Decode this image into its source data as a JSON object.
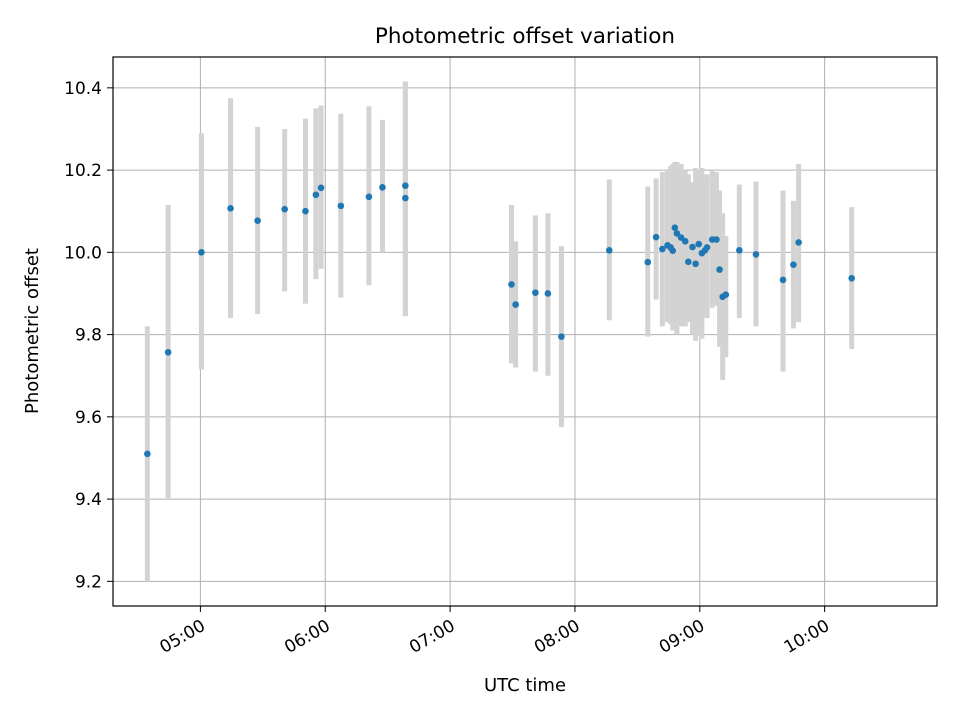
{
  "chart_data": {
    "type": "scatter",
    "title": "Photometric offset variation",
    "xlabel": "UTC time",
    "ylabel": "Photometric offset",
    "x_unit": "UTC time (HH:MM)",
    "xlim": [
      "04:18",
      "10:54"
    ],
    "ylim": [
      9.14,
      10.475
    ],
    "xticks": [
      "05:00",
      "06:00",
      "07:00",
      "08:00",
      "09:00",
      "10:00"
    ],
    "yticks": [
      "9.2",
      "9.4",
      "9.6",
      "9.8",
      "10.0",
      "10.2",
      "10.4"
    ],
    "grid": true,
    "marker_color": "#1f77b4",
    "errorbar_color": "#d3d3d3",
    "series": [
      {
        "points": [
          {
            "x": "04:34:30",
            "y": 9.51,
            "ylow": 9.2,
            "yhigh": 9.82
          },
          {
            "x": "04:44:30",
            "y": 9.757,
            "ylow": 9.4,
            "yhigh": 10.115
          },
          {
            "x": "05:00:30",
            "y": 10.0,
            "ylow": 9.715,
            "yhigh": 10.29
          },
          {
            "x": "05:14:30",
            "y": 10.107,
            "ylow": 9.84,
            "yhigh": 10.375
          },
          {
            "x": "05:27:30",
            "y": 10.077,
            "ylow": 9.85,
            "yhigh": 10.305
          },
          {
            "x": "05:40:30",
            "y": 10.105,
            "ylow": 9.905,
            "yhigh": 10.3
          },
          {
            "x": "05:50:30",
            "y": 10.1,
            "ylow": 9.875,
            "yhigh": 10.325
          },
          {
            "x": "05:55:30",
            "y": 10.14,
            "ylow": 9.935,
            "yhigh": 10.35
          },
          {
            "x": "05:58:00",
            "y": 10.157,
            "ylow": 9.96,
            "yhigh": 10.357
          },
          {
            "x": "06:07:30",
            "y": 10.113,
            "ylow": 9.89,
            "yhigh": 10.337
          },
          {
            "x": "06:21:00",
            "y": 10.135,
            "ylow": 9.92,
            "yhigh": 10.355
          },
          {
            "x": "06:27:30",
            "y": 10.158,
            "ylow": 10.0,
            "yhigh": 10.322
          },
          {
            "x": "06:38:30",
            "y": 10.162,
            "ylow": 9.845,
            "yhigh": 10.415
          },
          {
            "x": "06:38:30",
            "y": 10.132,
            "ylow": 9.845,
            "yhigh": 10.415
          },
          {
            "x": "07:29:30",
            "y": 9.922,
            "ylow": 9.73,
            "yhigh": 10.115
          },
          {
            "x": "07:31:30",
            "y": 9.873,
            "ylow": 9.72,
            "yhigh": 10.027
          },
          {
            "x": "07:41:00",
            "y": 9.902,
            "ylow": 9.71,
            "yhigh": 10.09
          },
          {
            "x": "07:47:00",
            "y": 9.9,
            "ylow": 9.7,
            "yhigh": 10.095
          },
          {
            "x": "07:53:30",
            "y": 9.795,
            "ylow": 9.575,
            "yhigh": 10.015
          },
          {
            "x": "08:16:30",
            "y": 10.005,
            "ylow": 9.835,
            "yhigh": 10.177
          },
          {
            "x": "08:35:00",
            "y": 9.976,
            "ylow": 9.795,
            "yhigh": 10.16
          },
          {
            "x": "08:39:00",
            "y": 10.037,
            "ylow": 9.885,
            "yhigh": 10.18
          },
          {
            "x": "08:42:00",
            "y": 10.008,
            "ylow": 9.82,
            "yhigh": 10.195
          },
          {
            "x": "08:44:30",
            "y": 10.017,
            "ylow": 9.83,
            "yhigh": 10.2
          },
          {
            "x": "08:46:00",
            "y": 10.012,
            "ylow": 9.825,
            "yhigh": 10.21
          },
          {
            "x": "08:47:00",
            "y": 10.004,
            "ylow": 9.81,
            "yhigh": 10.215
          },
          {
            "x": "08:48:00",
            "y": 10.06,
            "ylow": 9.83,
            "yhigh": 10.22
          },
          {
            "x": "08:49:00",
            "y": 10.046,
            "ylow": 9.8,
            "yhigh": 10.22
          },
          {
            "x": "08:51:00",
            "y": 10.036,
            "ylow": 9.82,
            "yhigh": 10.215
          },
          {
            "x": "08:53:00",
            "y": 10.027,
            "ylow": 9.82,
            "yhigh": 10.2
          },
          {
            "x": "08:54:30",
            "y": 9.977,
            "ylow": 9.83,
            "yhigh": 10.19
          },
          {
            "x": "08:56:30",
            "y": 10.013,
            "ylow": 9.8,
            "yhigh": 10.17
          },
          {
            "x": "08:58:00",
            "y": 9.972,
            "ylow": 9.785,
            "yhigh": 10.205
          },
          {
            "x": "08:59:30",
            "y": 10.02,
            "ylow": 9.8,
            "yhigh": 10.2
          },
          {
            "x": "09:01:00",
            "y": 9.998,
            "ylow": 9.79,
            "yhigh": 10.205
          },
          {
            "x": "09:02:30",
            "y": 10.005,
            "ylow": 9.85,
            "yhigh": 10.18
          },
          {
            "x": "09:03:30",
            "y": 10.012,
            "ylow": 9.84,
            "yhigh": 10.19
          },
          {
            "x": "09:06:00",
            "y": 10.031,
            "ylow": 9.865,
            "yhigh": 10.2
          },
          {
            "x": "09:08:00",
            "y": 10.031,
            "ylow": 9.87,
            "yhigh": 10.195
          },
          {
            "x": "09:09:30",
            "y": 9.958,
            "ylow": 9.77,
            "yhigh": 10.15
          },
          {
            "x": "09:11:00",
            "y": 9.892,
            "ylow": 9.69,
            "yhigh": 10.095
          },
          {
            "x": "09:12:30",
            "y": 9.897,
            "ylow": 9.745,
            "yhigh": 10.04
          },
          {
            "x": "09:19:00",
            "y": 10.005,
            "ylow": 9.84,
            "yhigh": 10.165
          },
          {
            "x": "09:27:00",
            "y": 9.995,
            "ylow": 9.82,
            "yhigh": 10.172
          },
          {
            "x": "09:40:00",
            "y": 9.933,
            "ylow": 9.71,
            "yhigh": 10.15
          },
          {
            "x": "09:45:00",
            "y": 9.97,
            "ylow": 9.815,
            "yhigh": 10.125
          },
          {
            "x": "09:47:30",
            "y": 10.024,
            "ylow": 9.83,
            "yhigh": 10.215
          },
          {
            "x": "10:13:00",
            "y": 9.937,
            "ylow": 9.765,
            "yhigh": 10.11
          }
        ]
      }
    ]
  }
}
